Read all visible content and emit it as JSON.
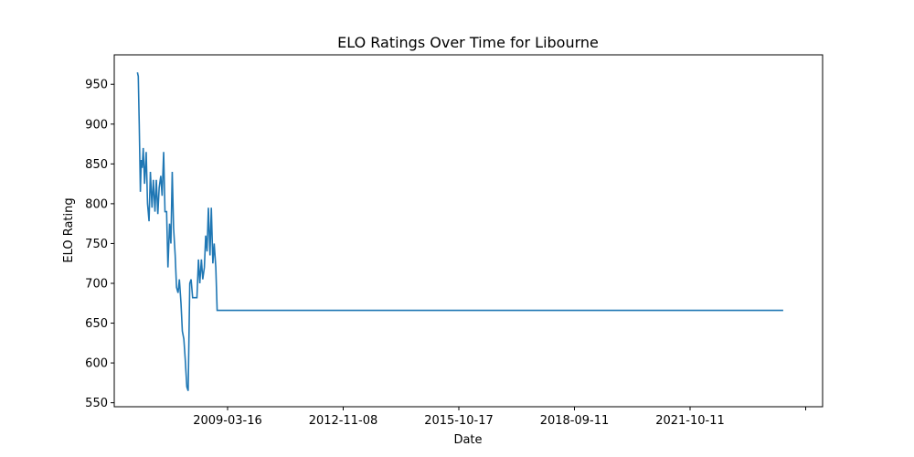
{
  "chart_data": {
    "type": "line",
    "title": "ELO Ratings Over Time for Libourne",
    "xlabel": "Date",
    "ylabel": "ELO Rating",
    "x_tick_labels": [
      "2009-03-16",
      "2012-11-08",
      "2015-10-17",
      "2018-09-11",
      "2021-10-11"
    ],
    "y_ticks": [
      550,
      600,
      650,
      700,
      750,
      800,
      850,
      900,
      950
    ],
    "xlim": [
      "2004-07-01",
      "2024-11-01"
    ],
    "ylim": [
      545,
      987
    ],
    "grid": false,
    "legend": "none",
    "color": "#1f77b4",
    "series": [
      {
        "x": [
          "2005-03-01",
          "2005-03-10",
          "2005-03-20",
          "2005-04-01",
          "2005-04-10",
          "2005-04-20",
          "2005-05-01",
          "2005-05-15",
          "2005-06-01",
          "2005-06-15",
          "2005-07-01",
          "2005-07-15",
          "2005-08-01",
          "2005-08-15",
          "2005-09-01",
          "2005-09-15",
          "2005-10-01",
          "2005-10-15",
          "2005-11-01",
          "2005-11-15",
          "2005-12-01",
          "2005-12-15",
          "2006-01-01",
          "2006-01-15",
          "2006-02-01",
          "2006-02-15",
          "2006-03-01",
          "2006-03-15",
          "2006-04-01",
          "2006-04-15",
          "2006-05-01",
          "2006-05-15",
          "2006-06-01",
          "2006-06-15",
          "2006-07-01",
          "2006-07-15",
          "2006-08-01",
          "2006-08-15",
          "2006-09-01",
          "2006-09-15",
          "2006-10-01",
          "2006-10-15",
          "2006-11-01",
          "2006-11-15",
          "2006-12-01",
          "2006-12-15",
          "2007-01-01",
          "2007-01-15",
          "2007-02-01",
          "2007-02-15",
          "2007-03-01",
          "2007-03-15",
          "2007-04-01",
          "2007-04-15",
          "2007-05-01",
          "2007-05-15",
          "2007-06-01",
          "2007-06-15",
          "2007-07-01",
          "2007-07-15",
          "2007-08-01",
          "2007-08-15",
          "2007-09-01",
          "2007-09-15",
          "2007-10-01",
          "2007-10-15",
          "2007-11-01",
          "2007-11-15",
          "2007-12-01",
          "2007-12-15",
          "2008-01-01",
          "2008-01-15",
          "2008-02-01",
          "2008-02-15",
          "2008-03-01",
          "2008-03-15",
          "2008-04-01",
          "2008-04-15",
          "2008-05-01",
          "2008-05-15",
          "2008-06-01",
          "2008-06-15",
          "2008-07-01",
          "2008-07-15",
          "2008-08-01",
          "2008-08-15",
          "2008-09-01",
          "2008-09-15",
          "2023-09-15"
        ],
        "y": [
          965,
          960,
          900,
          815,
          855,
          845,
          870,
          825,
          865,
          800,
          778,
          840,
          795,
          830,
          790,
          830,
          787,
          820,
          835,
          810,
          865,
          790,
          790,
          720,
          775,
          750,
          840,
          770,
          735,
          695,
          688,
          705,
          675,
          640,
          630,
          605,
          570,
          565,
          700,
          705,
          682,
          682,
          682,
          682,
          730,
          700,
          730,
          705,
          720,
          760,
          740,
          795,
          735,
          795,
          725,
          750,
          720,
          666,
          666,
          666,
          666,
          666,
          666,
          666,
          666,
          666,
          666,
          666,
          666,
          666,
          666,
          666,
          666,
          666,
          666,
          666,
          666,
          666,
          666,
          666,
          666,
          666,
          666,
          666,
          666,
          666,
          666,
          666,
          666
        ]
      }
    ]
  }
}
